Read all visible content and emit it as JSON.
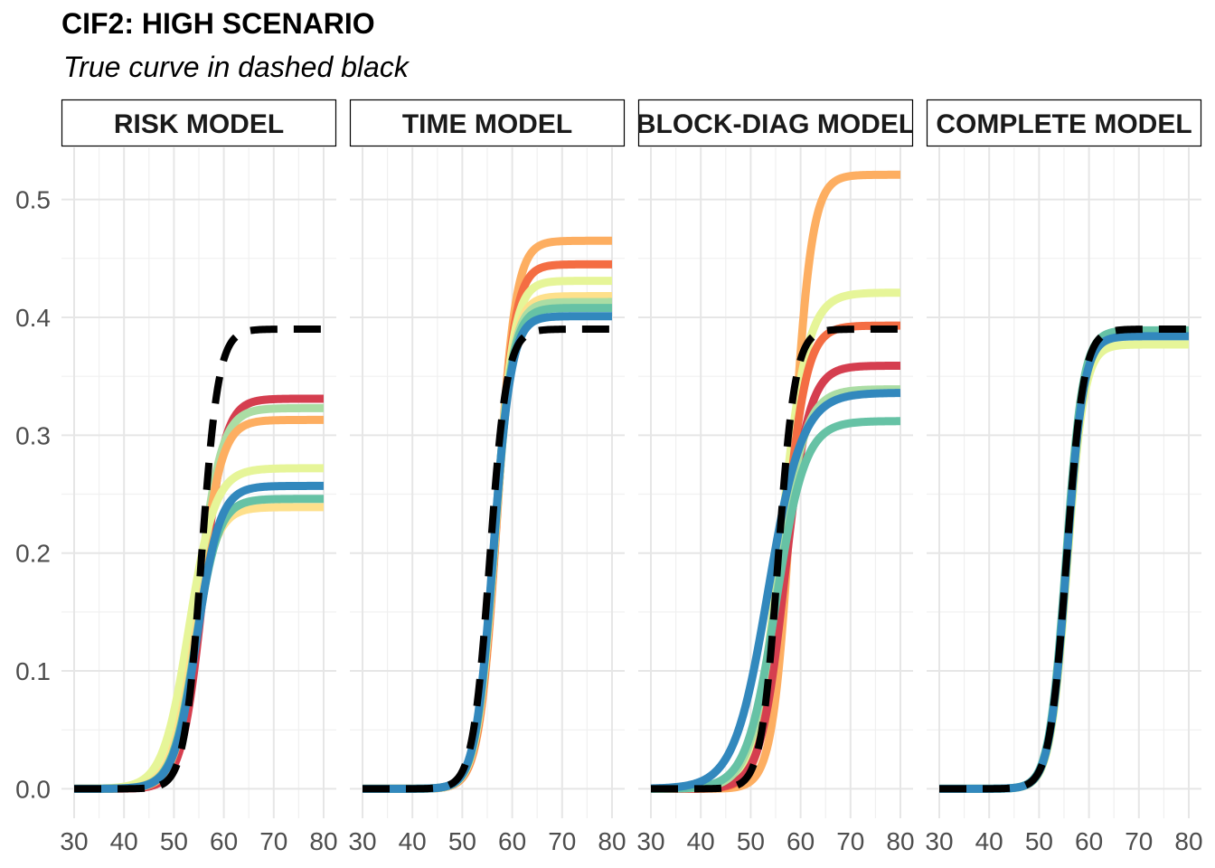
{
  "title": "CIF2: HIGH SCENARIO",
  "subtitle": "True curve in dashed black",
  "chart_data": {
    "type": "line",
    "facets": [
      "RISK MODEL",
      "TIME MODEL",
      "BLOCK-DIAG MODEL",
      "COMPLETE MODEL"
    ],
    "x_ticks": [
      30,
      40,
      50,
      60,
      70,
      80
    ],
    "y_ticks": [
      0.0,
      0.1,
      0.2,
      0.3,
      0.4,
      0.5
    ],
    "y_tick_labels": [
      "0.0",
      "0.1",
      "0.2",
      "0.3",
      "0.4",
      "0.5"
    ],
    "xlim": [
      30,
      80
    ],
    "ylim": [
      -0.025,
      0.545
    ],
    "grid": true,
    "palette": [
      "#d53e4f",
      "#f46d43",
      "#fdae61",
      "#fee08b",
      "#e6f598",
      "#abdda4",
      "#66c2a5",
      "#3288bd"
    ],
    "true_curve": {
      "color": "#000000",
      "style": "dashed",
      "plateau": 0.39,
      "midpoint": 55.5,
      "scale": 1.7
    },
    "panels": [
      {
        "facet": "RISK MODEL",
        "curves": [
          {
            "color": "#d53e4f",
            "plateau": 0.331,
            "midpoint": 55.8,
            "scale": 2.1
          },
          {
            "color": "#abdda4",
            "plateau": 0.323,
            "midpoint": 54.8,
            "scale": 2.3
          },
          {
            "color": "#fdae61",
            "plateau": 0.313,
            "midpoint": 55.0,
            "scale": 2.2
          },
          {
            "color": "#e6f598",
            "plateau": 0.272,
            "midpoint": 53.0,
            "scale": 2.6
          },
          {
            "color": "#fee08b",
            "plateau": 0.239,
            "midpoint": 53.8,
            "scale": 2.3
          },
          {
            "color": "#66c2a5",
            "plateau": 0.246,
            "midpoint": 54.3,
            "scale": 2.3
          },
          {
            "color": "#3288bd",
            "plateau": 0.257,
            "midpoint": 54.6,
            "scale": 2.3
          }
        ]
      },
      {
        "facet": "TIME MODEL",
        "curves": [
          {
            "color": "#fdae61",
            "plateau": 0.465,
            "midpoint": 57.0,
            "scale": 1.8
          },
          {
            "color": "#f46d43",
            "plateau": 0.445,
            "midpoint": 56.8,
            "scale": 1.8
          },
          {
            "color": "#e6f598",
            "plateau": 0.431,
            "midpoint": 56.6,
            "scale": 1.8
          },
          {
            "color": "#fee08b",
            "plateau": 0.418,
            "midpoint": 56.5,
            "scale": 1.8
          },
          {
            "color": "#abdda4",
            "plateau": 0.413,
            "midpoint": 56.4,
            "scale": 1.8
          },
          {
            "color": "#66c2a5",
            "plateau": 0.408,
            "midpoint": 56.3,
            "scale": 1.8
          },
          {
            "color": "#3288bd",
            "plateau": 0.401,
            "midpoint": 56.2,
            "scale": 1.8
          }
        ]
      },
      {
        "facet": "BLOCK-DIAG MODEL",
        "curves": [
          {
            "color": "#fdae61",
            "plateau": 0.521,
            "midpoint": 58.3,
            "scale": 1.9
          },
          {
            "color": "#e6f598",
            "plateau": 0.421,
            "midpoint": 56.0,
            "scale": 2.6
          },
          {
            "color": "#f46d43",
            "plateau": 0.393,
            "midpoint": 56.6,
            "scale": 2.2
          },
          {
            "color": "#d53e4f",
            "plateau": 0.359,
            "midpoint": 56.8,
            "scale": 2.4
          },
          {
            "color": "#abdda4",
            "plateau": 0.339,
            "midpoint": 55.3,
            "scale": 2.7
          },
          {
            "color": "#66c2a5",
            "plateau": 0.312,
            "midpoint": 55.0,
            "scale": 2.9
          },
          {
            "color": "#3288bd",
            "plateau": 0.336,
            "midpoint": 53.5,
            "scale": 3.4
          }
        ]
      },
      {
        "facet": "COMPLETE MODEL",
        "curves": [
          {
            "color": "#e6f598",
            "plateau": 0.377,
            "midpoint": 55.6,
            "scale": 1.7
          },
          {
            "color": "#abdda4",
            "plateau": 0.386,
            "midpoint": 55.5,
            "scale": 1.7
          },
          {
            "color": "#66c2a5",
            "plateau": 0.389,
            "midpoint": 55.4,
            "scale": 1.7
          },
          {
            "color": "#3288bd",
            "plateau": 0.384,
            "midpoint": 55.5,
            "scale": 1.7
          }
        ]
      }
    ]
  }
}
